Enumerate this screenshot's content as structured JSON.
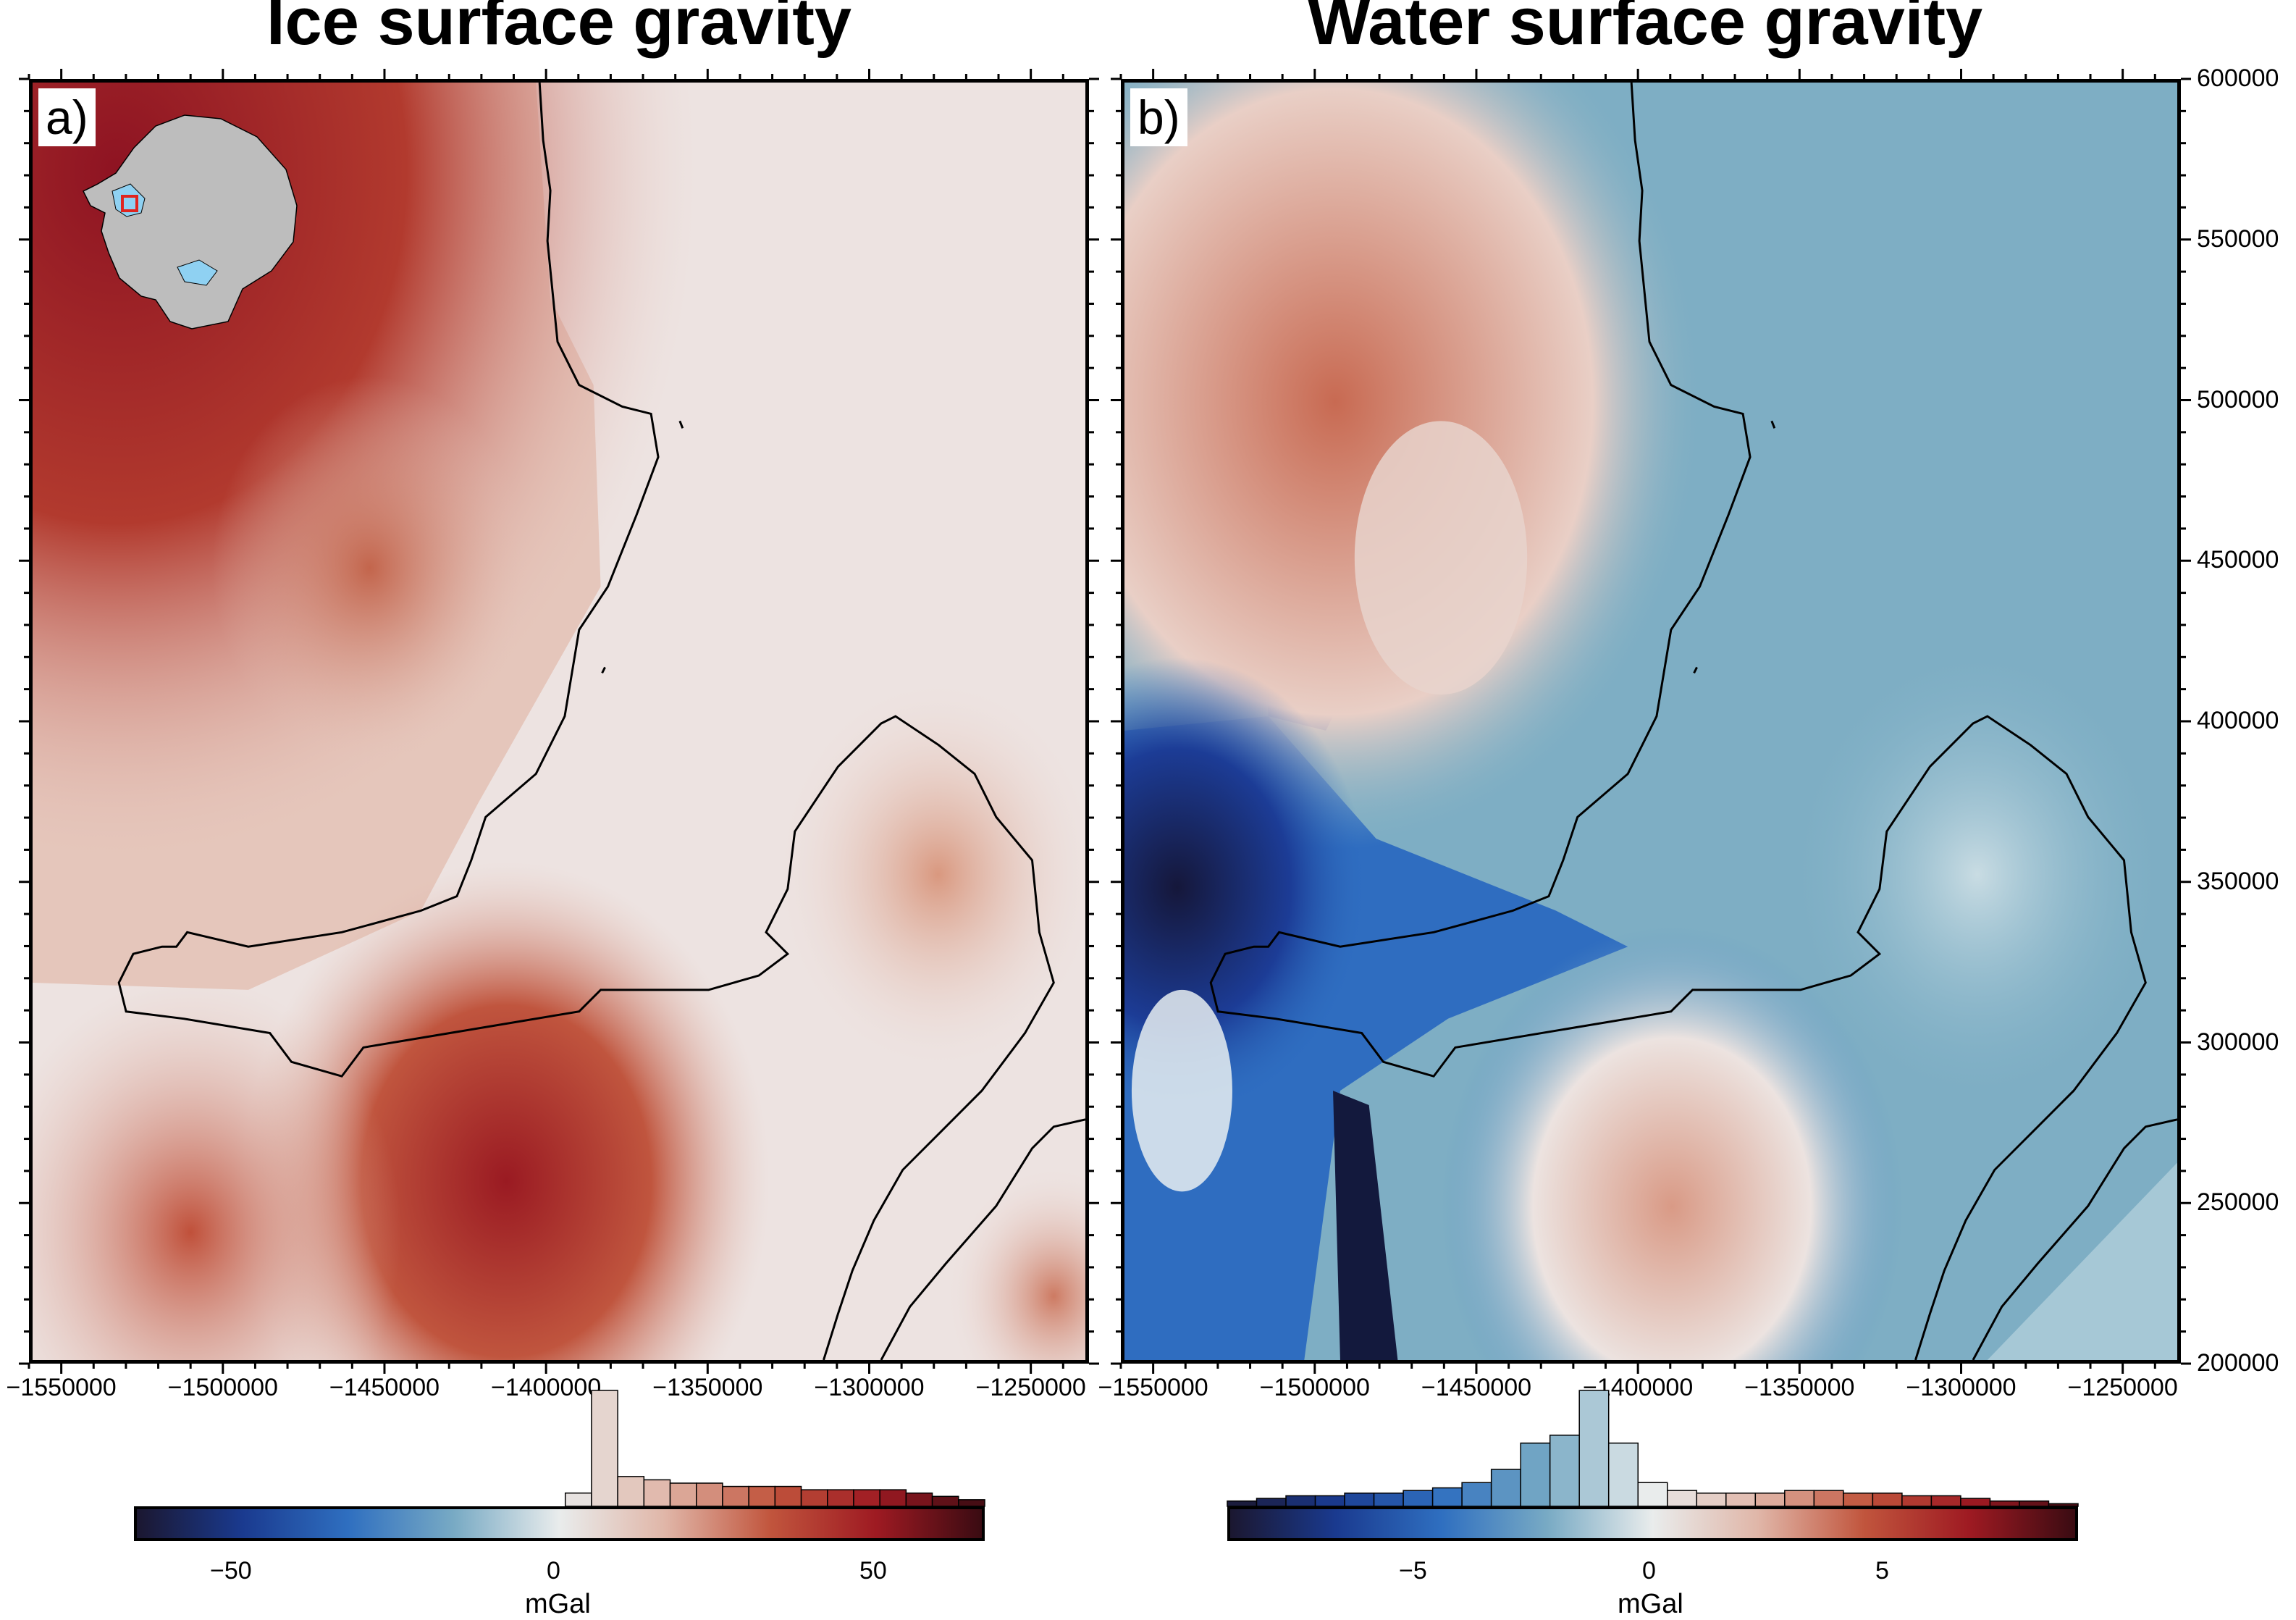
{
  "panels": [
    {
      "title": "Ice surface gravity",
      "tag": "a)",
      "colorbar": {
        "ticks": [
          "−50",
          "0",
          "50"
        ],
        "unit": "mGal",
        "range": [
          -65,
          65
        ]
      }
    },
    {
      "title": "Water surface gravity",
      "tag": "b)",
      "colorbar": {
        "ticks": [
          "−5",
          "0",
          "5"
        ],
        "unit": "mGal",
        "range": [
          -9.2,
          9.2
        ]
      }
    }
  ],
  "x_tick_labels": [
    "−1550000",
    "−1500000",
    "−1450000",
    "−1400000",
    "−1350000",
    "−1300000",
    "−1250000"
  ],
  "y_tick_labels": [
    "200000",
    "250000",
    "300000",
    "350000",
    "400000",
    "450000",
    "500000",
    "550000",
    "600000"
  ],
  "colors": {
    "cmap": [
      "#1b1730",
      "#1a3a8f",
      "#2f6fc0",
      "#78aac4",
      "#e9ecec",
      "#e0b6a8",
      "#c1553d",
      "#9e1a22",
      "#3a0b12"
    ],
    "inset_land": "#bdbdbd",
    "inset_shelf": "#8fd1f2",
    "inset_box": "#e0251f"
  },
  "chart_data": {
    "type": "heatmap",
    "xlim": [
      -1560000,
      -1232000
    ],
    "ylim": [
      200000,
      600000
    ],
    "histograms": [
      [
        4,
        35,
        9,
        8,
        7,
        7,
        6,
        6,
        6,
        5,
        5,
        5,
        5,
        4,
        3,
        2
      ],
      [
        2,
        3,
        4,
        4,
        5,
        5,
        6,
        7,
        9,
        14,
        24,
        27,
        44,
        24,
        9,
        6,
        5,
        5,
        5,
        6,
        6,
        5,
        5,
        4,
        4,
        3,
        2,
        2,
        1
      ]
    ]
  }
}
